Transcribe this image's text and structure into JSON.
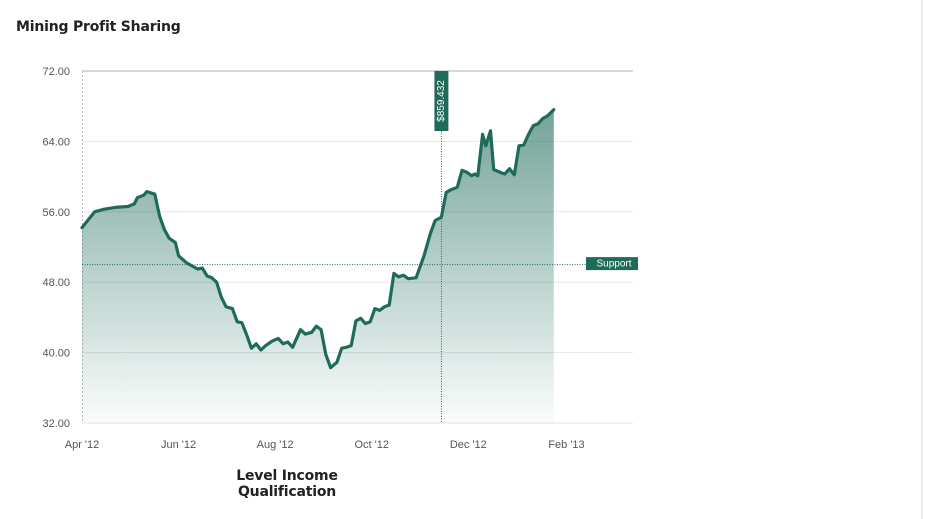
{
  "chart_data": {
    "type": "area",
    "title": "Mining Profit Sharing",
    "xlabel": "Level Income Qualification",
    "ylabel": "",
    "ylim": [
      32,
      72
    ],
    "y_ticks": [
      "72.00",
      "64.00",
      "56.00",
      "48.00",
      "40.00",
      "32.00"
    ],
    "x_ticks": [
      "Apr '12",
      "Jun '12",
      "Aug '12",
      "Oct '12",
      "Dec '12",
      "Feb '13"
    ],
    "x_range": [
      "2012-04-01",
      "2013-03-15"
    ],
    "grid": true,
    "colors": {
      "line": "#1e6b5a",
      "fill": "#1e6b5a",
      "guide": "#1e6b5a"
    },
    "series": [
      {
        "values": [
          [
            "2012-04-01",
            54.2
          ],
          [
            "2012-04-05",
            55.1
          ],
          [
            "2012-04-09",
            56.0
          ],
          [
            "2012-04-15",
            56.3
          ],
          [
            "2012-04-22",
            56.5
          ],
          [
            "2012-04-30",
            56.6
          ],
          [
            "2012-05-04",
            56.9
          ],
          [
            "2012-05-06",
            57.6
          ],
          [
            "2012-05-10",
            57.9
          ],
          [
            "2012-05-12",
            58.3
          ],
          [
            "2012-05-17",
            58.0
          ],
          [
            "2012-05-20",
            55.5
          ],
          [
            "2012-05-23",
            54.0
          ],
          [
            "2012-05-26",
            53.0
          ],
          [
            "2012-05-30",
            52.5
          ],
          [
            "2012-06-01",
            51.0
          ],
          [
            "2012-06-06",
            50.2
          ],
          [
            "2012-06-10",
            49.8
          ],
          [
            "2012-06-13",
            49.5
          ],
          [
            "2012-06-16",
            49.6
          ],
          [
            "2012-06-19",
            48.7
          ],
          [
            "2012-06-22",
            48.5
          ],
          [
            "2012-06-25",
            48.0
          ],
          [
            "2012-06-28",
            46.3
          ],
          [
            "2012-07-01",
            45.2
          ],
          [
            "2012-07-05",
            45.0
          ],
          [
            "2012-07-08",
            43.5
          ],
          [
            "2012-07-11",
            43.4
          ],
          [
            "2012-07-14",
            42.0
          ],
          [
            "2012-07-17",
            40.5
          ],
          [
            "2012-07-20",
            41.0
          ],
          [
            "2012-07-23",
            40.3
          ],
          [
            "2012-07-26",
            40.8
          ],
          [
            "2012-07-30",
            41.3
          ],
          [
            "2012-08-03",
            41.6
          ],
          [
            "2012-08-06",
            41.0
          ],
          [
            "2012-08-09",
            41.2
          ],
          [
            "2012-08-12",
            40.6
          ],
          [
            "2012-08-15",
            41.8
          ],
          [
            "2012-08-17",
            42.6
          ],
          [
            "2012-08-20",
            42.1
          ],
          [
            "2012-08-24",
            42.3
          ],
          [
            "2012-08-27",
            43.0
          ],
          [
            "2012-08-30",
            42.6
          ],
          [
            "2012-09-02",
            39.8
          ],
          [
            "2012-09-05",
            38.3
          ],
          [
            "2012-09-09",
            38.9
          ],
          [
            "2012-09-12",
            40.5
          ],
          [
            "2012-09-15",
            40.6
          ],
          [
            "2012-09-18",
            40.8
          ],
          [
            "2012-09-21",
            43.6
          ],
          [
            "2012-09-24",
            43.9
          ],
          [
            "2012-09-27",
            43.3
          ],
          [
            "2012-09-30",
            43.5
          ],
          [
            "2012-10-03",
            45.0
          ],
          [
            "2012-10-06",
            44.8
          ],
          [
            "2012-10-09",
            45.2
          ],
          [
            "2012-10-12",
            45.4
          ],
          [
            "2012-10-15",
            49.0
          ],
          [
            "2012-10-18",
            48.6
          ],
          [
            "2012-10-21",
            48.8
          ],
          [
            "2012-10-24",
            48.4
          ],
          [
            "2012-10-29",
            48.5
          ],
          [
            "2012-11-03",
            51.0
          ],
          [
            "2012-11-07",
            53.5
          ],
          [
            "2012-11-10",
            55.0
          ],
          [
            "2012-11-14",
            55.4
          ],
          [
            "2012-11-17",
            58.2
          ],
          [
            "2012-11-20",
            58.5
          ],
          [
            "2012-11-24",
            58.8
          ],
          [
            "2012-11-27",
            60.7
          ],
          [
            "2012-11-30",
            60.5
          ],
          [
            "2012-12-03",
            60.1
          ],
          [
            "2012-12-05",
            60.3
          ],
          [
            "2012-12-07",
            60.1
          ],
          [
            "2012-12-10",
            64.8
          ],
          [
            "2012-12-12",
            63.5
          ],
          [
            "2012-12-15",
            65.2
          ],
          [
            "2012-12-17",
            60.8
          ],
          [
            "2012-12-21",
            60.5
          ],
          [
            "2012-12-24",
            60.3
          ],
          [
            "2012-12-27",
            60.9
          ],
          [
            "2012-12-30",
            60.2
          ],
          [
            "2013-01-02",
            63.5
          ],
          [
            "2013-01-05",
            63.6
          ],
          [
            "2013-01-08",
            64.8
          ],
          [
            "2013-01-11",
            65.8
          ],
          [
            "2013-01-14",
            66.0
          ],
          [
            "2013-01-17",
            66.6
          ],
          [
            "2013-01-20",
            66.9
          ],
          [
            "2013-01-24",
            67.6
          ]
        ]
      }
    ],
    "markers": {
      "vertical_label": "$859.432",
      "vertical_date": "2012-11-14",
      "horizontal_label": "Support",
      "horizontal_value": 50.0
    }
  }
}
